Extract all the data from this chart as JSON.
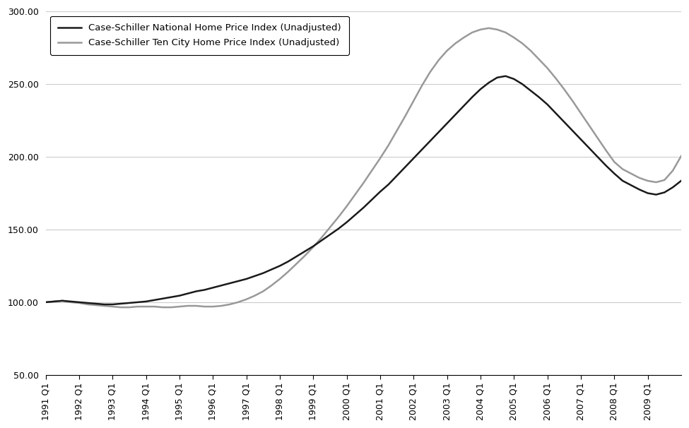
{
  "legend_national": "Case-Schiller National Home Price Index (Unadjusted)",
  "legend_tencity": "Case-Schiller Ten City Home Price Index (Unadjusted)",
  "national_color": "#1a1a1a",
  "tencity_color": "#999999",
  "line_width": 1.8,
  "ylim": [
    50,
    300
  ],
  "yticks": [
    50.0,
    100.0,
    150.0,
    200.0,
    250.0,
    300.0
  ],
  "background_color": "#ffffff",
  "grid_color": "#cccccc",
  "xtick_labels": [
    "1991 Q1",
    "1992 Q1",
    "1993 Q1",
    "1994 Q1",
    "1995 Q1",
    "1996 Q1",
    "1997 Q1",
    "1998 Q1",
    "1999 Q1",
    "2000 Q1",
    "2001 Q1",
    "2002 Q1",
    "2003 Q1",
    "2004 Q1",
    "2005 Q1",
    "2006 Q1",
    "2007 Q1",
    "2008 Q1",
    "2009 Q1"
  ],
  "national": [
    100.0,
    100.5,
    101.0,
    100.5,
    100.0,
    99.5,
    99.0,
    98.5,
    98.5,
    99.0,
    99.5,
    100.0,
    100.5,
    101.5,
    102.5,
    103.5,
    104.5,
    106.0,
    107.5,
    108.5,
    110.0,
    111.5,
    113.0,
    114.5,
    116.0,
    118.0,
    120.0,
    122.5,
    125.0,
    128.0,
    131.5,
    135.0,
    138.5,
    142.5,
    146.5,
    150.5,
    155.0,
    160.0,
    165.0,
    170.5,
    176.0,
    181.0,
    187.0,
    193.0,
    199.0,
    205.0,
    211.0,
    217.0,
    223.0,
    229.0,
    235.0,
    241.0,
    246.5,
    251.0,
    254.5,
    255.5,
    253.5,
    250.0,
    245.5,
    241.0,
    236.0,
    230.0,
    224.0,
    218.0,
    212.0,
    206.0,
    200.0,
    194.0,
    188.5,
    183.5,
    180.5,
    177.5,
    175.0,
    174.0,
    175.5,
    179.0,
    183.5
  ],
  "tencity": [
    100.0,
    100.5,
    101.0,
    100.0,
    99.5,
    98.5,
    98.0,
    97.5,
    97.0,
    96.5,
    96.5,
    97.0,
    97.0,
    97.0,
    96.5,
    96.5,
    97.0,
    97.5,
    97.5,
    97.0,
    97.0,
    97.5,
    98.5,
    100.0,
    102.0,
    104.5,
    107.5,
    111.5,
    116.0,
    121.0,
    126.5,
    132.0,
    138.0,
    144.5,
    151.5,
    158.5,
    166.0,
    174.0,
    182.0,
    190.5,
    199.0,
    208.0,
    218.0,
    228.0,
    238.5,
    249.0,
    258.5,
    266.5,
    273.0,
    278.0,
    282.0,
    285.5,
    287.5,
    288.5,
    287.5,
    285.5,
    282.0,
    278.0,
    273.0,
    267.0,
    261.0,
    254.0,
    246.5,
    238.5,
    230.0,
    221.5,
    213.0,
    204.5,
    196.5,
    191.5,
    188.5,
    185.5,
    183.5,
    182.5,
    184.0,
    190.5,
    200.5
  ]
}
